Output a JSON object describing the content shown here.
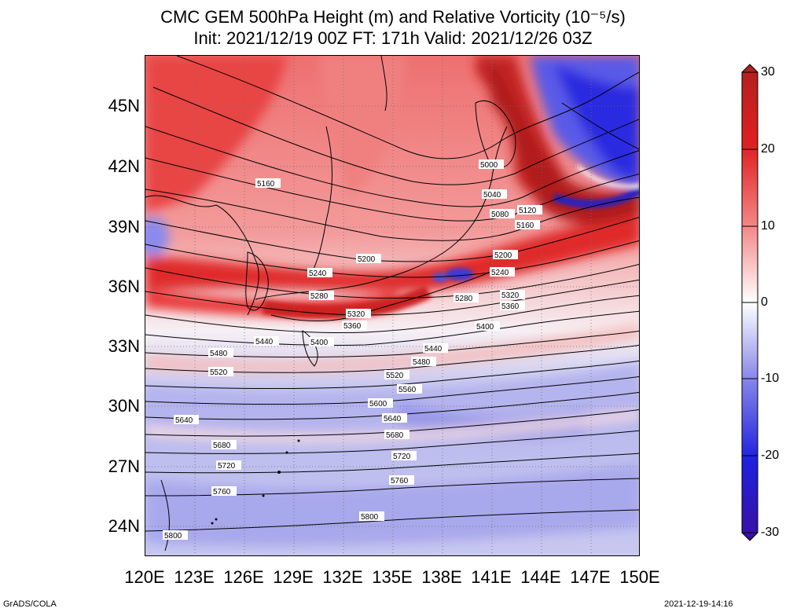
{
  "title_line1": "CMC GEM 500hPa Height (m) and Relative Vorticity (10⁻⁵/s)",
  "title_line2": "Init: 2021/12/19 00Z  FT: 171h  Valid: 2021/12/26 03Z",
  "lat_labels": [
    "45N",
    "42N",
    "39N",
    "36N",
    "33N",
    "30N",
    "27N",
    "24N"
  ],
  "lon_labels": [
    "120E",
    "123E",
    "126E",
    "129E",
    "132E",
    "135E",
    "138E",
    "141E",
    "144E",
    "147E",
    "150E"
  ],
  "colorbar_labels": [
    "30",
    "20",
    "10",
    "0",
    "-10",
    "-20",
    "-30"
  ],
  "contour_labels": [
    "5000",
    "5040",
    "5080",
    "5120",
    "5160",
    "5160",
    "5200",
    "5200",
    "5240",
    "5240",
    "5280",
    "5280",
    "5320",
    "5320",
    "5360",
    "5360",
    "5400",
    "5400",
    "5440",
    "5440",
    "5480",
    "5480",
    "5520",
    "5520",
    "5560",
    "5600",
    "5640",
    "5640",
    "5680",
    "5680",
    "5720",
    "5720",
    "5760",
    "5760",
    "5800",
    "5800"
  ],
  "footer_left": "GrADS/COLA",
  "footer_right": "2021-12-19-14:16",
  "colors": {
    "strong_positive": "#b02020",
    "positive": "#e83030",
    "weak_positive": "#f4a0a0",
    "neutral": "#ffffff",
    "weak_negative": "#a8a8ec",
    "negative": "#2828d8",
    "strong_negative": "#3a10a0",
    "coastline": "#000000",
    "contour": "#000000"
  }
}
